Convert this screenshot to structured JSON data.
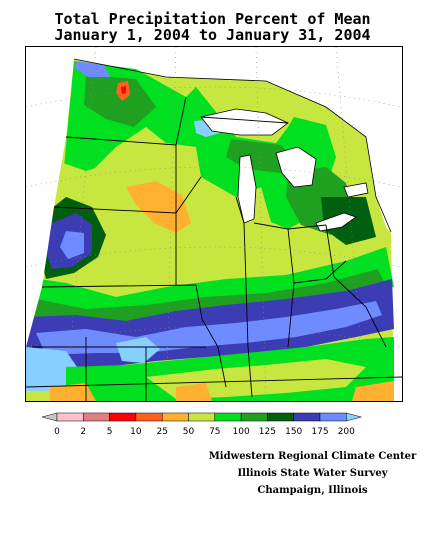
{
  "title": {
    "line1": "Total Precipitation Percent of Mean",
    "line2": "January 1, 2004 to January 31, 2004"
  },
  "legend": {
    "labels": [
      "0",
      "2",
      "5",
      "10",
      "25",
      "50",
      "75",
      "100",
      "125",
      "150",
      "175",
      "200"
    ],
    "colors": [
      "#c8c8c8",
      "#ffc0cb",
      "#e08080",
      "#ff0000",
      "#ff6020",
      "#ffb030",
      "#c8e640",
      "#00e020",
      "#20a020",
      "#006010",
      "#3c3cb4",
      "#6e8cff",
      "#88d0ff"
    ]
  },
  "credits": {
    "line1": "Midwestern Regional Climate Center",
    "line2": "Illinois State Water Survey",
    "line3": "Champaign, Illinois"
  },
  "palette": {
    "ocean": "#ffffff",
    "borders": "#000000",
    "grid": "#888888"
  }
}
